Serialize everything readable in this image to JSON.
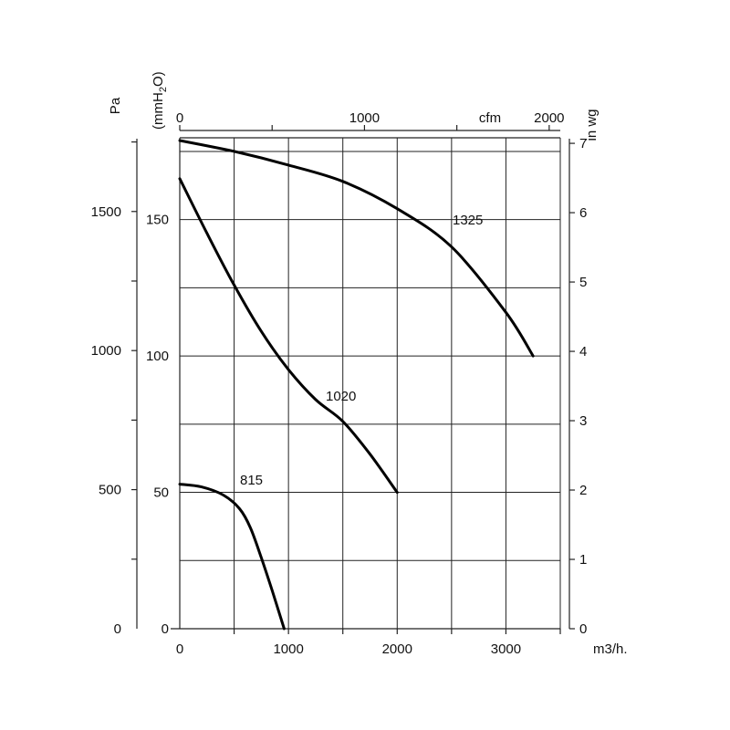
{
  "chart_data": {
    "type": "line",
    "title": "",
    "x_axis_bottom": {
      "unit": "m3/h.",
      "range": [
        0,
        3500
      ],
      "ticks": [
        0,
        1000,
        2000,
        3000
      ],
      "tick_labels": [
        "0",
        "1000",
        "2000",
        "3000"
      ]
    },
    "x_axis_top": {
      "unit": "cfm",
      "range": [
        0,
        2060
      ],
      "ticks": [
        0,
        1000,
        2000
      ],
      "tick_labels": [
        "0",
        "1000",
        "2000"
      ]
    },
    "y_axis_left_pa": {
      "unit": "Pa",
      "range": [
        0,
        1765
      ],
      "ticks": [
        0,
        500,
        1000,
        1500
      ],
      "tick_labels": [
        "0",
        "500",
        "1000",
        "1500"
      ]
    },
    "y_axis_left_mmh2o": {
      "unit_parts": [
        "(mmH",
        "2",
        "O)"
      ],
      "range": [
        0,
        180
      ],
      "ticks": [
        0,
        50,
        100,
        150
      ],
      "tick_labels": [
        "0",
        "50",
        "100",
        "150"
      ]
    },
    "y_axis_right": {
      "unit": "in wg",
      "range": [
        0,
        7.08
      ],
      "ticks": [
        0,
        1,
        2,
        3,
        4,
        5,
        6,
        7
      ],
      "tick_labels": [
        "0",
        "1",
        "2",
        "3",
        "4",
        "5",
        "6",
        "7"
      ]
    },
    "grid": true,
    "series": [
      {
        "name": "1325",
        "x": [
          0,
          500,
          1000,
          1500,
          2000,
          2500,
          3000,
          3250
        ],
        "y": [
          179,
          175,
          170,
          164,
          154,
          140,
          116,
          100
        ]
      },
      {
        "name": "1020",
        "x": [
          0,
          250,
          500,
          750,
          1000,
          1250,
          1500,
          1750,
          2000
        ],
        "y": [
          165,
          145,
          126,
          109,
          95,
          84,
          76,
          64,
          50
        ]
      },
      {
        "name": "815",
        "x": [
          0,
          200,
          400,
          550,
          650,
          750,
          850,
          960
        ],
        "y": [
          53,
          52,
          49,
          44,
          37,
          26,
          14,
          0
        ]
      }
    ]
  }
}
